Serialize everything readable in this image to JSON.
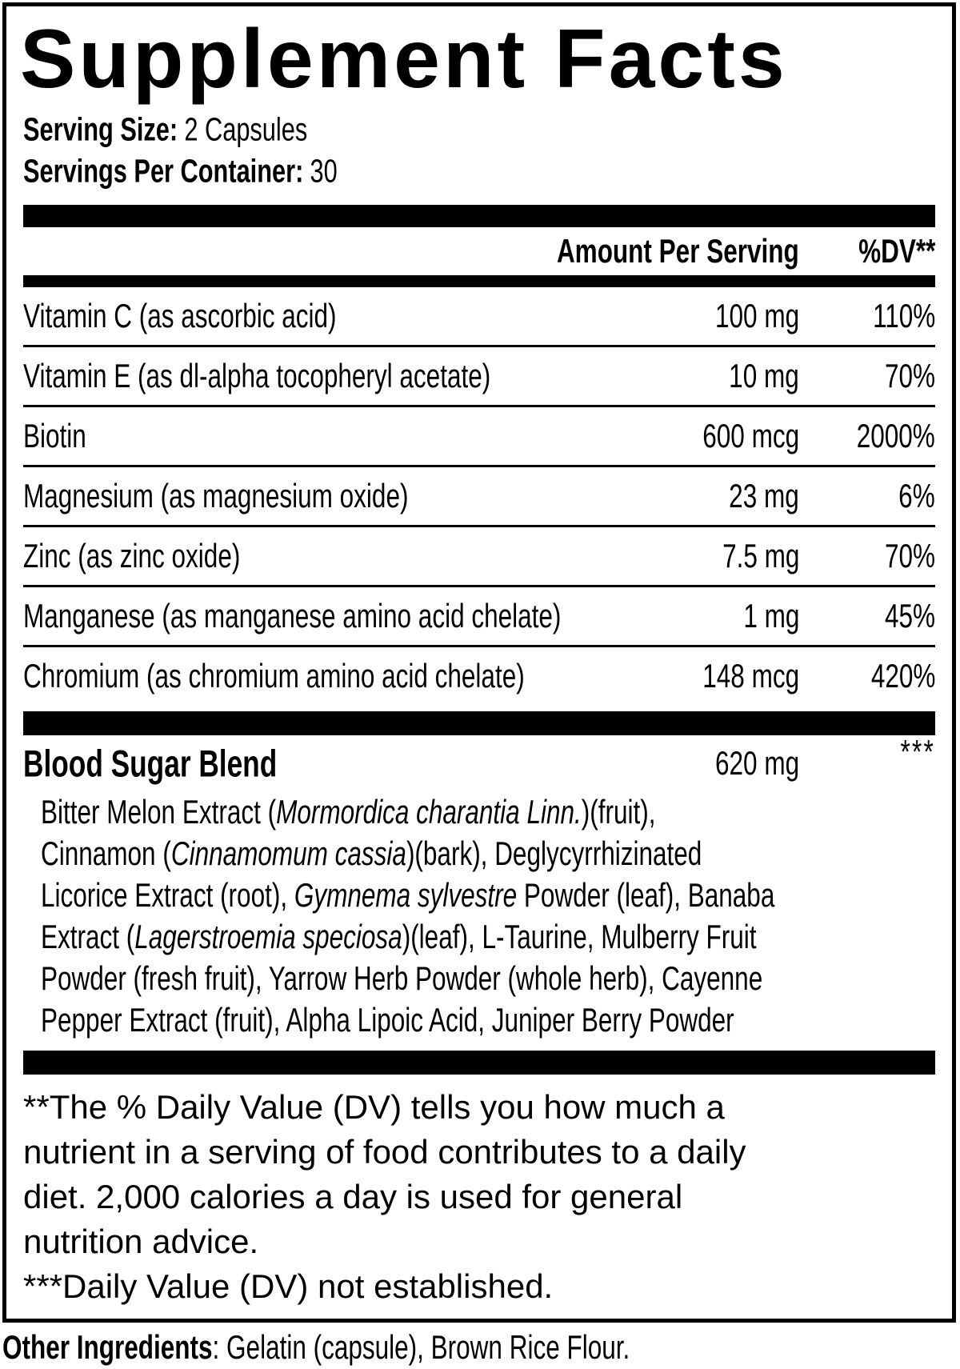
{
  "colors": {
    "ink": "#000000",
    "paper": "#ffffff"
  },
  "panel": {
    "title": "Supplement Facts",
    "serving_size": {
      "label": "Serving Size:",
      "value": "2 Capsules"
    },
    "servings_per_container": {
      "label": "Servings Per Container:",
      "value": "30"
    },
    "column_headers": {
      "amount": "Amount Per Serving",
      "dv": "%DV**"
    },
    "nutrients": [
      {
        "name": "Vitamin C (as ascorbic acid)",
        "amount": "100 mg",
        "dv": "110%"
      },
      {
        "name": "Vitamin E (as dl-alpha tocopheryl acetate)",
        "amount": "10 mg",
        "dv": "70%"
      },
      {
        "name": "Biotin",
        "amount": "600 mcg",
        "dv": "2000%"
      },
      {
        "name": "Magnesium (as magnesium oxide)",
        "amount": "23 mg",
        "dv": "6%"
      },
      {
        "name": "Zinc (as zinc oxide)",
        "amount": "7.5 mg",
        "dv": "70%"
      },
      {
        "name": "Manganese (as manganese amino acid chelate)",
        "amount": "1 mg",
        "dv": "45%"
      },
      {
        "name": "Chromium (as chromium amino acid chelate)",
        "amount": "148 mcg",
        "dv": "420%"
      }
    ],
    "blend": {
      "name": "Blood Sugar Blend",
      "amount": "620 mg",
      "dv": "***",
      "description_lines": [
        [
          {
            "text": "Bitter Melon Extract ("
          },
          {
            "text": "Mormordica charantia Linn.",
            "italic": true
          },
          {
            "text": ")(fruit),"
          }
        ],
        [
          {
            "text": "Cinnamon ("
          },
          {
            "text": "Cinnamomum cassia",
            "italic": true
          },
          {
            "text": ")(bark), Deglycyrrhizinated"
          }
        ],
        [
          {
            "text": "Licorice Extract (root), "
          },
          {
            "text": "Gymnema sylvestre",
            "italic": true
          },
          {
            "text": " Powder (leaf), Banaba"
          }
        ],
        [
          {
            "text": "Extract ("
          },
          {
            "text": "Lagerstroemia speciosa",
            "italic": true
          },
          {
            "text": ")(leaf), L-Taurine, Mulberry Fruit"
          }
        ],
        [
          {
            "text": "Powder (fresh fruit), Yarrow Herb Powder (whole herb), Cayenne"
          }
        ],
        [
          {
            "text": "Pepper Extract (fruit), Alpha Lipoic Acid, Juniper Berry Powder"
          }
        ]
      ]
    },
    "footnotes": {
      "daily_value_lines": [
        "**The % Daily Value (DV) tells you how much a",
        "nutrient in a serving of food contributes to a daily",
        "diet. 2,000 calories a day is used for general",
        "nutrition advice."
      ],
      "not_established": "***Daily Value (DV) not established."
    }
  },
  "other_ingredients": {
    "label": "Other Ingredients",
    "value": ": Gelatin (capsule), Brown Rice Flour."
  }
}
